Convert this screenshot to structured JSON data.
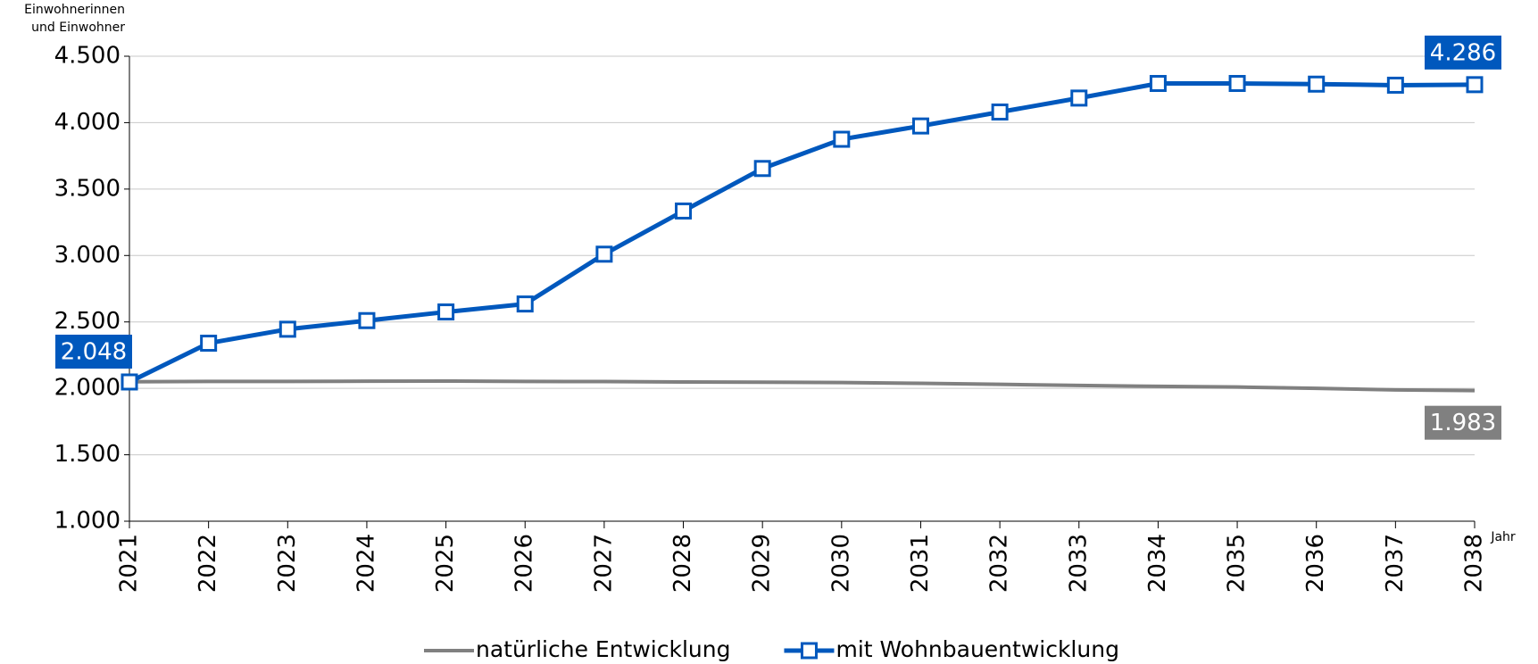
{
  "chart_data": {
    "type": "line",
    "y_label": [
      "Einwohnerinnen",
      "und Einwohner"
    ],
    "x_label": "Jahr",
    "categories": [
      "2021",
      "2022",
      "2023",
      "2024",
      "2025",
      "2026",
      "2027",
      "2028",
      "2029",
      "2030",
      "2031",
      "2032",
      "2033",
      "2034",
      "2035",
      "2036",
      "2037",
      "2038"
    ],
    "series": [
      {
        "name": "natürliche Entwicklung",
        "color": "#808080",
        "marker": false,
        "values": [
          2050,
          2052,
          2052,
          2054,
          2055,
          2052,
          2051,
          2048,
          2046,
          2044,
          2038,
          2030,
          2022,
          2015,
          2010,
          2000,
          1988,
          1983
        ],
        "value_labels": [
          null,
          null,
          null,
          null,
          null,
          null,
          null,
          null,
          null,
          null,
          null,
          null,
          null,
          null,
          null,
          null,
          null,
          "1.983"
        ]
      },
      {
        "name": "mit Wohnbauentwicklung",
        "color": "#0058bd",
        "marker": true,
        "values": [
          2048,
          2340,
          2445,
          2510,
          2575,
          2635,
          3010,
          3335,
          3655,
          3875,
          3975,
          4080,
          4185,
          4295,
          4295,
          4290,
          4282,
          4286
        ],
        "value_labels": [
          "2.048",
          null,
          null,
          null,
          null,
          null,
          null,
          null,
          null,
          null,
          null,
          null,
          null,
          null,
          null,
          null,
          null,
          "4.286"
        ]
      }
    ],
    "ylim": [
      1000,
      4500
    ],
    "yticks": [
      {
        "value": 1000,
        "label": "1.000"
      },
      {
        "value": 1500,
        "label": "1.500"
      },
      {
        "value": 2000,
        "label": "2.000"
      },
      {
        "value": 2500,
        "label": "2.500"
      },
      {
        "value": 3000,
        "label": "3.000"
      },
      {
        "value": 3500,
        "label": "3.500"
      },
      {
        "value": 4000,
        "label": "4.000"
      },
      {
        "value": 4500,
        "label": "4.500"
      }
    ],
    "grid": true,
    "legend": "bottom"
  }
}
